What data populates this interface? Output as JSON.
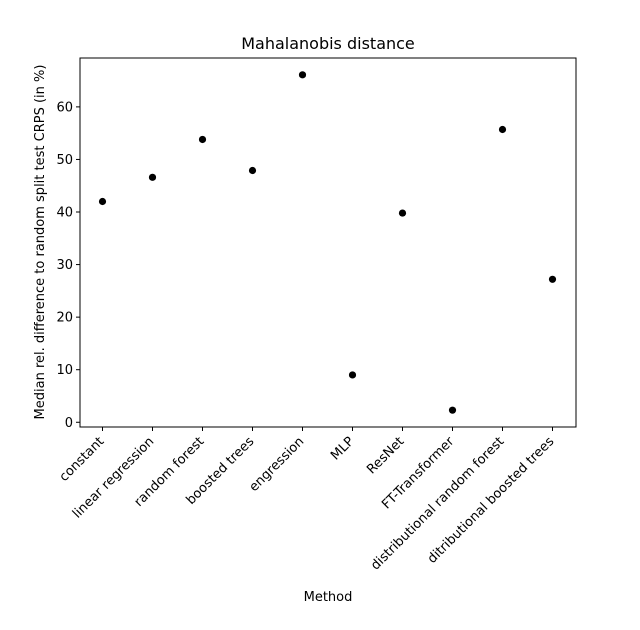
{
  "chart_data": {
    "type": "scatter",
    "title": "Mahalanobis distance",
    "xlabel": "Method",
    "ylabel": "Median rel. difference to random split test CRPS (in %)",
    "categories": [
      "constant",
      "linear regression",
      "random forest",
      "boosted trees",
      "engression",
      "MLP",
      "ResNet",
      "FT-Transformer",
      "distributional random forest",
      "ditributional boosted trees"
    ],
    "values": [
      42.0,
      46.6,
      53.8,
      47.9,
      66.1,
      9.0,
      39.8,
      2.3,
      55.7,
      27.2
    ],
    "ylim": [
      -0.9,
      69.3
    ],
    "yticks": [
      0,
      10,
      20,
      30,
      40,
      50,
      60
    ],
    "grid": false,
    "marker_color": "#000000"
  }
}
